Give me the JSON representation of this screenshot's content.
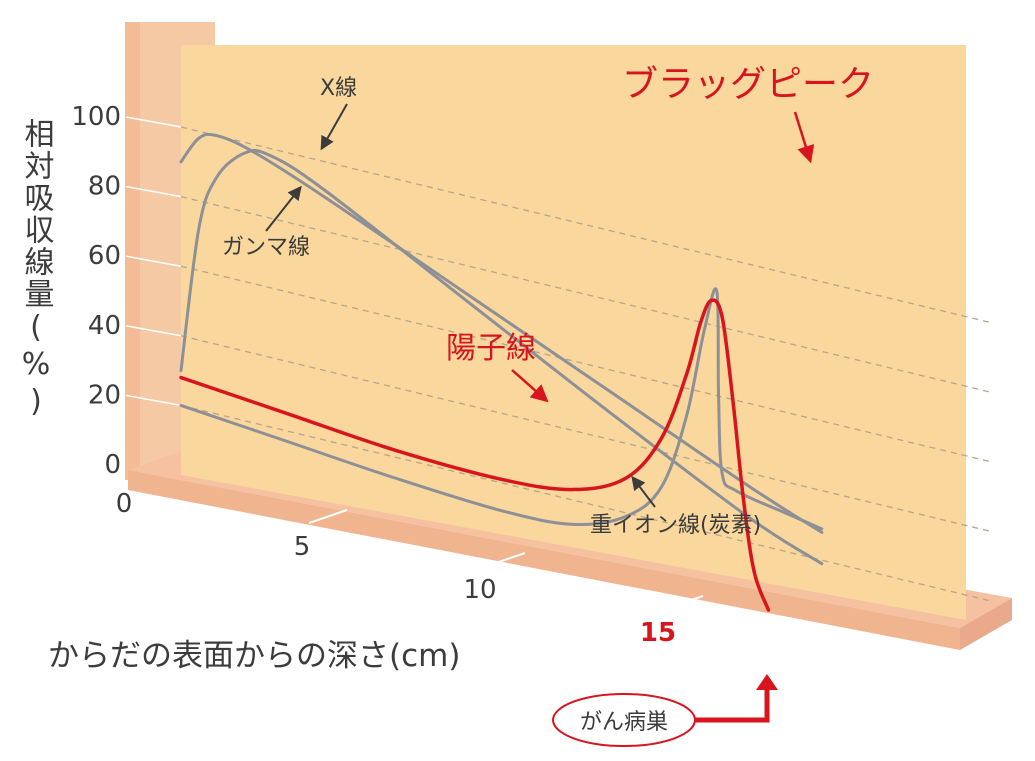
{
  "chart_data": {
    "type": "line",
    "ylabel": "相対吸収線量(%)",
    "xlabel": "からだの表面からの深さ(cm)",
    "y_ticks": [
      "0",
      "20",
      "40",
      "60",
      "80",
      "100"
    ],
    "x_ticks": [
      "0",
      "5",
      "10",
      "15"
    ],
    "ylim": [
      0,
      100
    ],
    "xlim": [
      0,
      18
    ],
    "grid": true,
    "series": [
      {
        "name": "X線",
        "color": "#8d9096",
        "points": [
          [
            0,
            90
          ],
          [
            0.5,
            98
          ],
          [
            1,
            100
          ],
          [
            2,
            98
          ],
          [
            4,
            90
          ],
          [
            8,
            72
          ],
          [
            12,
            54
          ],
          [
            16,
            36
          ],
          [
            18,
            28
          ]
        ]
      },
      {
        "name": "ガンマ線",
        "color": "#8d9096",
        "points": [
          [
            0,
            30
          ],
          [
            0.5,
            72
          ],
          [
            1,
            88
          ],
          [
            1.8,
            97
          ],
          [
            2.5,
            98
          ],
          [
            4,
            92
          ],
          [
            8,
            70
          ],
          [
            12,
            48
          ],
          [
            16,
            27
          ],
          [
            18,
            19
          ]
        ]
      },
      {
        "name": "陽子線",
        "color": "#d8141c",
        "points": [
          [
            0,
            28
          ],
          [
            3,
            25
          ],
          [
            6,
            22
          ],
          [
            9,
            21
          ],
          [
            11,
            23
          ],
          [
            12.5,
            30
          ],
          [
            13.5,
            44
          ],
          [
            14.2,
            64
          ],
          [
            14.6,
            80
          ],
          [
            14.9,
            87
          ],
          [
            15.2,
            83
          ],
          [
            15.5,
            60
          ],
          [
            15.8,
            32
          ],
          [
            16.1,
            12
          ],
          [
            16.5,
            2
          ]
        ]
      },
      {
        "name": "重イオン線(炭素)",
        "color": "#8d9096",
        "points": [
          [
            0,
            20
          ],
          [
            3,
            17
          ],
          [
            6,
            14
          ],
          [
            9,
            12
          ],
          [
            11,
            13
          ],
          [
            12.5,
            19
          ],
          [
            13.5,
            30
          ],
          [
            14.2,
            52
          ],
          [
            14.7,
            78
          ],
          [
            15.05,
            90
          ],
          [
            15.1,
            60
          ],
          [
            15.2,
            38
          ],
          [
            15.6,
            34
          ],
          [
            17,
            31
          ],
          [
            18,
            29
          ]
        ]
      }
    ],
    "annotations": {
      "bragg_peak": "ブラッグピーク",
      "target": "がん病巣",
      "target_depth": "15"
    }
  },
  "colors": {
    "panel": "#f9d79d",
    "panel_side": "#f5caa4",
    "left_wall": "#f6c9a5",
    "floor": "#f5c1a0",
    "grid": "#b8a58c",
    "gray_line": "#8d9096",
    "red": "#d8141c",
    "axis_text": "#3c3c3c"
  }
}
